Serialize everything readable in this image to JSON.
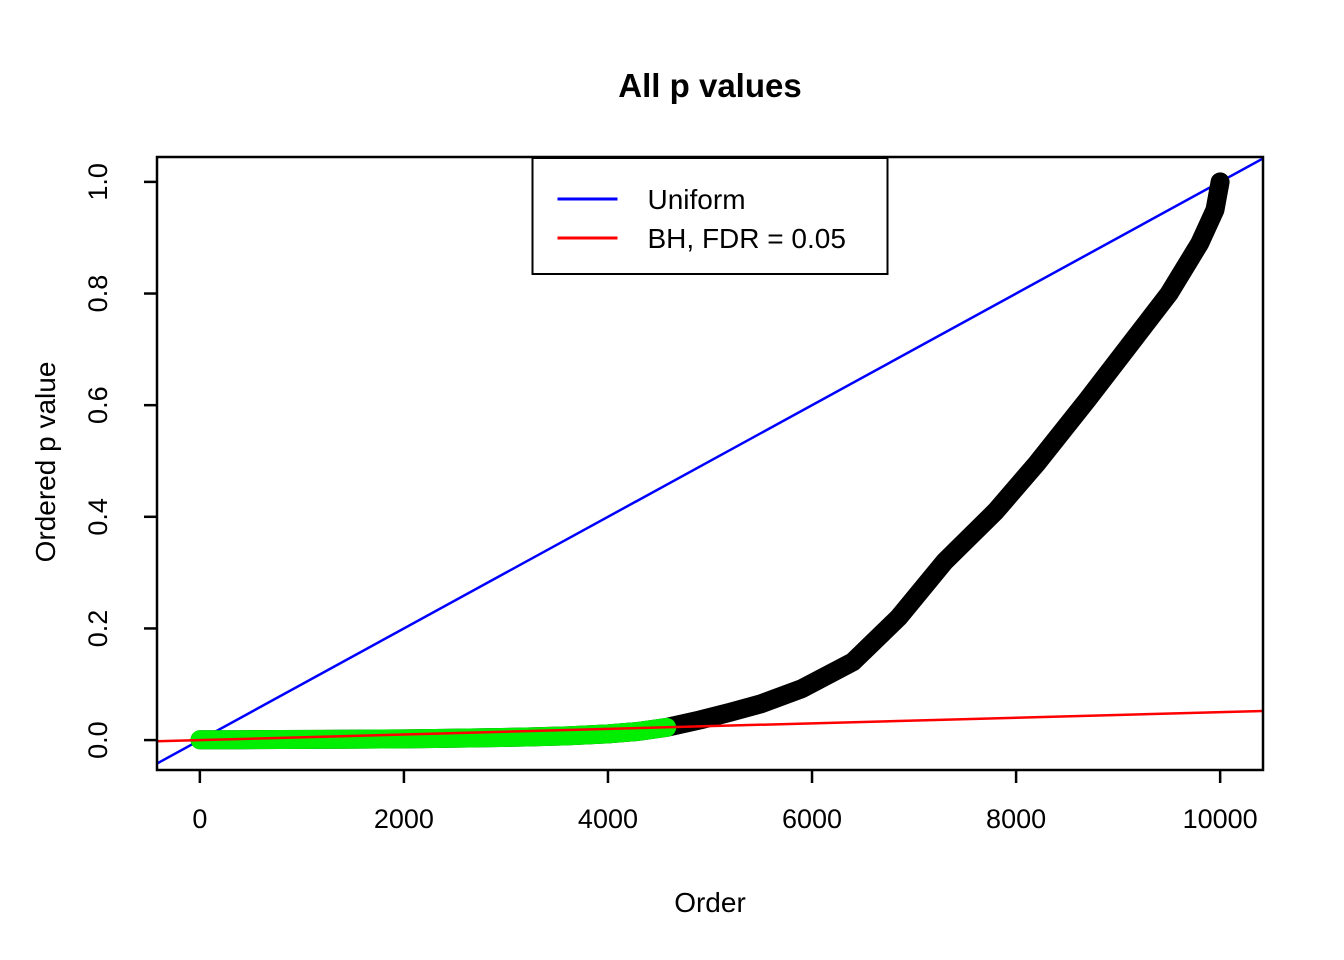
{
  "figure": {
    "background": "#ffffff",
    "foreground": "#000000"
  },
  "chart_data": {
    "type": "scatter",
    "title": "All p values",
    "xlabel": "Order",
    "ylabel": "Ordered p value",
    "xlim": [
      -420,
      10420
    ],
    "ylim": [
      -0.0536,
      1.0446
    ],
    "grid": false,
    "x_ticks": [
      {
        "v": 0,
        "label": "0"
      },
      {
        "v": 2000,
        "label": "2000"
      },
      {
        "v": 4000,
        "label": "4000"
      },
      {
        "v": 6000,
        "label": "6000"
      },
      {
        "v": 8000,
        "label": "8000"
      },
      {
        "v": 10000,
        "label": "10000"
      }
    ],
    "y_ticks": [
      {
        "v": 0.0,
        "label": "0.0"
      },
      {
        "v": 0.2,
        "label": "0.2"
      },
      {
        "v": 0.4,
        "label": "0.4"
      },
      {
        "v": 0.6,
        "label": "0.6"
      },
      {
        "v": 0.8,
        "label": "0.8"
      },
      {
        "v": 1.0,
        "label": "1.0"
      }
    ],
    "series": [
      {
        "name": "uniform-reference-line",
        "kind": "abline",
        "color": "#0000FF",
        "width": 2.5,
        "intercept": 0,
        "slope": 0.0001,
        "description": "Uniform expectation: p = i/n, n = 10000"
      },
      {
        "name": "ordered-p-values",
        "kind": "curve",
        "color": "#000000",
        "width": 19,
        "points": [
          [
            1,
            0.0005
          ],
          [
            400,
            0.0007
          ],
          [
            800,
            0.001
          ],
          [
            1200,
            0.0013
          ],
          [
            1600,
            0.0017
          ],
          [
            2000,
            0.0022
          ],
          [
            2400,
            0.003
          ],
          [
            2800,
            0.004
          ],
          [
            3200,
            0.0055
          ],
          [
            3600,
            0.0075
          ],
          [
            4000,
            0.011
          ],
          [
            4300,
            0.0155
          ],
          [
            4576,
            0.0228
          ],
          [
            4900,
            0.036
          ],
          [
            5200,
            0.05
          ],
          [
            5500,
            0.065
          ],
          [
            5900,
            0.092
          ],
          [
            6400,
            0.14
          ],
          [
            6850,
            0.22
          ],
          [
            7300,
            0.32
          ],
          [
            7800,
            0.41
          ],
          [
            8200,
            0.495
          ],
          [
            8700,
            0.61
          ],
          [
            9100,
            0.705
          ],
          [
            9500,
            0.8
          ],
          [
            9800,
            0.89
          ],
          [
            9950,
            0.95
          ],
          [
            10000,
            1.0
          ]
        ]
      },
      {
        "name": "significant-p-values-bh",
        "kind": "curve",
        "color": "#00EE00",
        "width": 19,
        "description": "p values below BH threshold (orders 1 to ~4576)",
        "points": [
          [
            1,
            0.0005
          ],
          [
            400,
            0.0007
          ],
          [
            800,
            0.001
          ],
          [
            1200,
            0.0013
          ],
          [
            1600,
            0.0017
          ],
          [
            2000,
            0.0022
          ],
          [
            2400,
            0.003
          ],
          [
            2800,
            0.004
          ],
          [
            3200,
            0.0055
          ],
          [
            3600,
            0.0075
          ],
          [
            4000,
            0.011
          ],
          [
            4300,
            0.0155
          ],
          [
            4576,
            0.0228
          ]
        ]
      },
      {
        "name": "bh-threshold-line",
        "kind": "abline",
        "color": "#FF0000",
        "width": 2.5,
        "intercept": 0,
        "slope": 5e-06,
        "description": "BH critical values: p = 0.05 * i/n, n = 10000"
      }
    ],
    "legend": {
      "position": "top",
      "entries": [
        {
          "label": "Uniform",
          "color": "#0000FF"
        },
        {
          "label": "BH, FDR = 0.05",
          "color": "#FF0000"
        }
      ]
    }
  }
}
